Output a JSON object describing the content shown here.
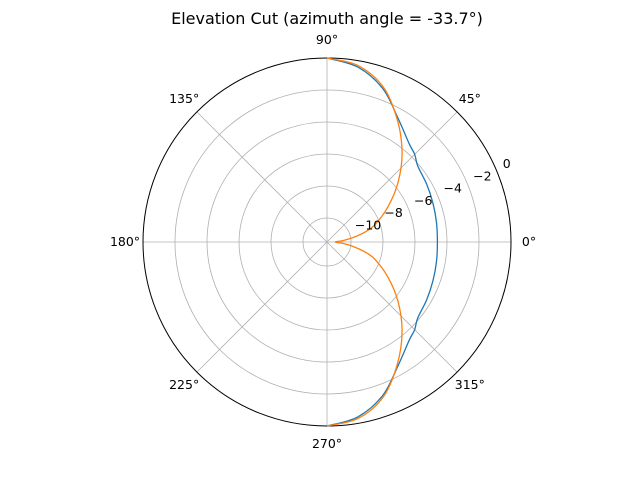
{
  "chart_data": {
    "type": "line",
    "projection": "polar",
    "title": "Elevation Cut (azimuth angle = -33.7°)",
    "theta_tick_labels": [
      "0°",
      "45°",
      "90°",
      "135°",
      "180°",
      "225°",
      "270°",
      "315°"
    ],
    "theta_ticks_deg": [
      0,
      45,
      90,
      135,
      180,
      225,
      270,
      315
    ],
    "r_tick_labels": [
      "−10",
      "−8",
      "−6",
      "−4",
      "−2",
      "0"
    ],
    "r_ticks": [
      -10,
      -8,
      -6,
      -4,
      -2,
      0
    ],
    "rlim": [
      -11.5,
      0
    ],
    "grid": true,
    "theta_range_deg": [
      -90,
      90
    ],
    "series": [
      {
        "color": "#1f77b4",
        "theta_deg": [
          -90,
          -80,
          -70,
          -60,
          -50,
          -45,
          -40,
          -30,
          -20,
          -10,
          0,
          10,
          20,
          30,
          40,
          45,
          50,
          60,
          70,
          80,
          90
        ],
        "r": [
          0.0,
          -0.4,
          -1.3,
          -2.6,
          -3.5,
          -3.75,
          -4.1,
          -4.3,
          -4.45,
          -4.55,
          -4.6,
          -4.55,
          -4.45,
          -4.3,
          -4.1,
          -3.75,
          -3.5,
          -2.6,
          -1.3,
          -0.4,
          0.0
        ]
      },
      {
        "color": "#ff7f0e",
        "theta_deg": [
          -90,
          -80,
          -70,
          -60,
          -50,
          -40,
          -30,
          -20,
          -15,
          -10,
          -5,
          0,
          5,
          10,
          15,
          20,
          30,
          40,
          50,
          60,
          70,
          80,
          90
        ],
        "r": [
          0.0,
          -0.3,
          -1.2,
          -2.7,
          -4.2,
          -5.7,
          -7.1,
          -8.3,
          -9.0,
          -9.8,
          -10.5,
          -11.0,
          -10.5,
          -9.8,
          -9.0,
          -8.3,
          -7.1,
          -5.7,
          -4.2,
          -2.7,
          -1.2,
          -0.3,
          0.0
        ]
      }
    ]
  }
}
